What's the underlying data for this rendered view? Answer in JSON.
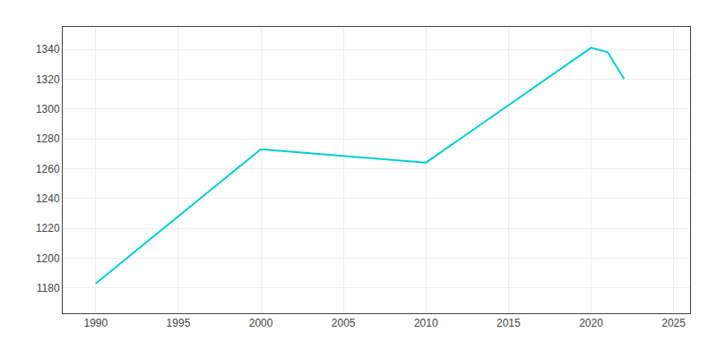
{
  "chart_data": {
    "type": "line",
    "x": [
      1990,
      2000,
      2010,
      2020,
      2021,
      2022
    ],
    "values": [
      1183,
      1273,
      1264,
      1341,
      1338,
      1320
    ],
    "color": "#00CED1",
    "xlim": [
      1988,
      2026
    ],
    "ylim": [
      1163,
      1355
    ],
    "xticks": [
      1990,
      1995,
      2000,
      2005,
      2010,
      2015,
      2020,
      2025
    ],
    "yticks": [
      1180,
      1200,
      1220,
      1240,
      1260,
      1280,
      1300,
      1320,
      1340
    ],
    "grid": true
  }
}
